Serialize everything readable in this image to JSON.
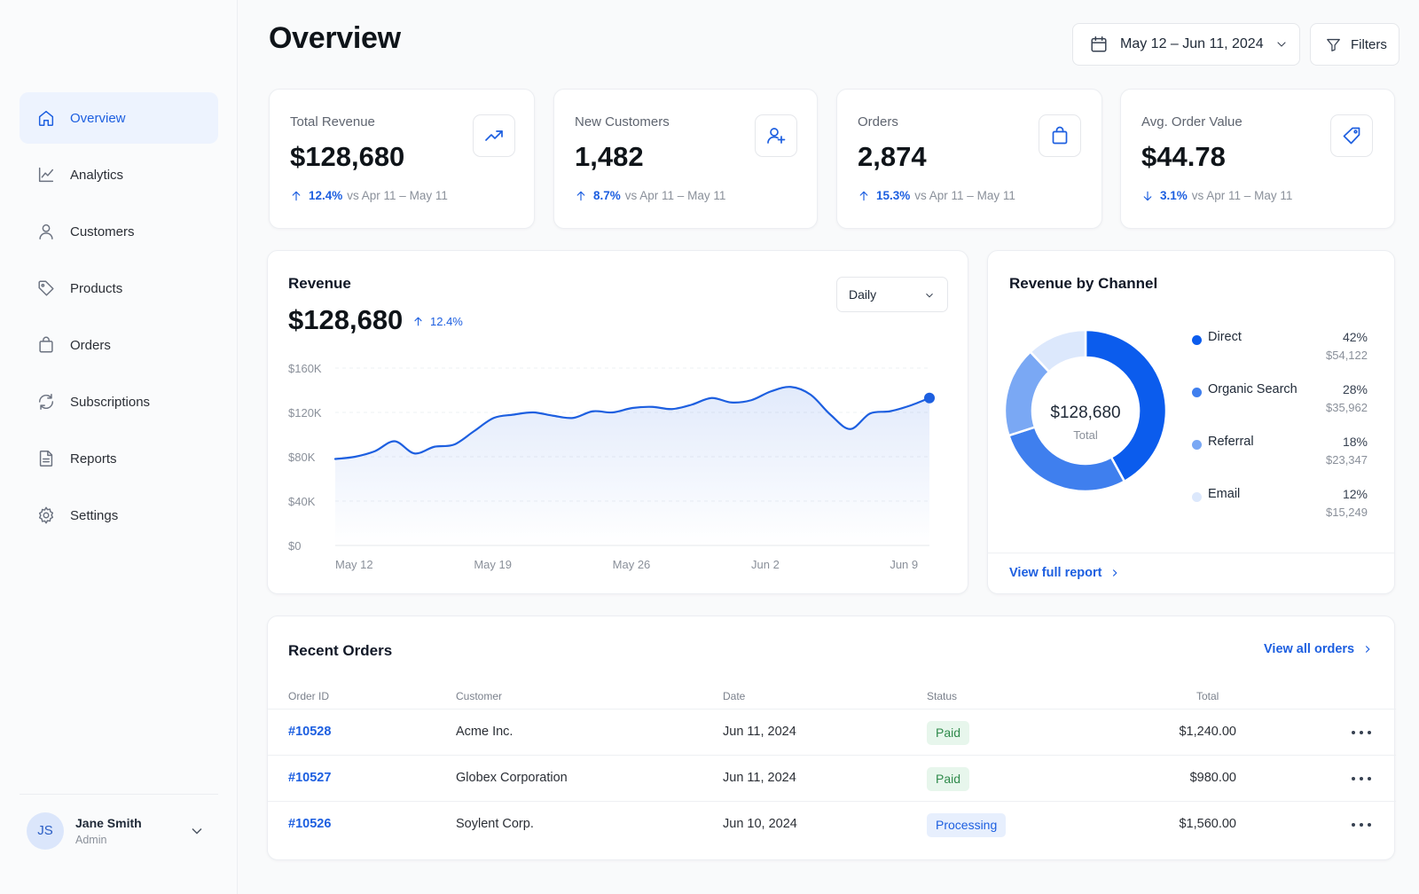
{
  "sidebar": {
    "items": [
      {
        "label": "Overview",
        "icon": "home-icon",
        "active": true
      },
      {
        "label": "Analytics",
        "icon": "line-chart-icon"
      },
      {
        "label": "Customers",
        "icon": "user-icon"
      },
      {
        "label": "Products",
        "icon": "tag-icon"
      },
      {
        "label": "Orders",
        "icon": "shopping-bag-icon"
      },
      {
        "label": "Subscriptions",
        "icon": "refresh-icon"
      },
      {
        "label": "Reports",
        "icon": "document-icon"
      },
      {
        "label": "Settings",
        "icon": "gear-icon"
      }
    ],
    "user": {
      "initials": "JS",
      "name": "Jane Smith",
      "role": "Admin"
    }
  },
  "header": {
    "title": "Overview",
    "date_range": "May 12 – Jun 11, 2024",
    "filters_label": "Filters"
  },
  "kpis": [
    {
      "label": "Total Revenue",
      "value": "$128,680",
      "delta": "12.4%",
      "direction": "up",
      "compare": "vs Apr 11 – May 11",
      "icon": "trending-up-icon"
    },
    {
      "label": "New Customers",
      "value": "1,482",
      "delta": "8.7%",
      "direction": "up",
      "compare": "vs Apr 11 – May 11",
      "icon": "user-plus-icon"
    },
    {
      "label": "Orders",
      "value": "2,874",
      "delta": "15.3%",
      "direction": "up",
      "compare": "vs Apr 11 – May 11",
      "icon": "shopping-bag-icon"
    },
    {
      "label": "Avg. Order Value",
      "value": "$44.78",
      "delta": "3.1%",
      "direction": "down",
      "compare": "vs Apr 11 – May 11",
      "icon": "tag-icon"
    }
  ],
  "revenue": {
    "title": "Revenue",
    "value": "$128,680",
    "delta": "12.4%",
    "period": "Daily"
  },
  "chart_data": {
    "type": "area",
    "y_ticks": [
      "$160K",
      "$120K",
      "$80K",
      "$40K",
      "$0"
    ],
    "x_ticks": [
      "May 12",
      "May 19",
      "May 26",
      "Jun 2",
      "Jun 9"
    ],
    "ylim": [
      0,
      160000
    ],
    "x": [
      "May 12",
      "May 13",
      "May 14",
      "May 15",
      "May 16",
      "May 17",
      "May 18",
      "May 19",
      "May 20",
      "May 21",
      "May 22",
      "May 23",
      "May 24",
      "May 25",
      "May 26",
      "May 27",
      "May 28",
      "May 29",
      "May 30",
      "May 31",
      "Jun 1",
      "Jun 2",
      "Jun 3",
      "Jun 4",
      "Jun 5",
      "Jun 6",
      "Jun 7",
      "Jun 8",
      "Jun 9",
      "Jun 10",
      "Jun 11"
    ],
    "values": [
      78000,
      80000,
      85000,
      94000,
      83000,
      89000,
      91000,
      103000,
      115000,
      118000,
      120000,
      117000,
      115000,
      121000,
      120000,
      124000,
      125000,
      123000,
      127000,
      133000,
      129000,
      131000,
      139000,
      143000,
      136000,
      118000,
      105000,
      119000,
      121000,
      126000,
      133000
    ],
    "color": "#1d5fe0",
    "grid": true
  },
  "channels": {
    "title": "Revenue by Channel",
    "total_value": "$128,680",
    "total_label": "Total",
    "link": "View full report",
    "chart_data": {
      "type": "pie",
      "labels": [
        "Direct",
        "Organic Search",
        "Referral",
        "Email"
      ],
      "values": [
        42,
        28,
        18,
        12
      ],
      "amounts": [
        "$54,122",
        "$35,962",
        "$23,347",
        "$15,249"
      ],
      "pcts": [
        "42%",
        "28%",
        "18%",
        "12%"
      ],
      "colors": [
        "#0b5ced",
        "#3f7fee",
        "#7aa8f4",
        "#dce8fc"
      ]
    }
  },
  "orders": {
    "title": "Recent Orders",
    "link": "View all orders",
    "columns": [
      "Order ID",
      "Customer",
      "Date",
      "Status",
      "Total"
    ],
    "rows": [
      {
        "id": "#10528",
        "customer": "Acme Inc.",
        "date": "Jun 11, 2024",
        "status": "Paid",
        "total": "$1,240.00"
      },
      {
        "id": "#10527",
        "customer": "Globex Corporation",
        "date": "Jun 11, 2024",
        "status": "Paid",
        "total": "$980.00"
      },
      {
        "id": "#10526",
        "customer": "Soylent Corp.",
        "date": "Jun 10, 2024",
        "status": "Processing",
        "total": "$1,560.00"
      }
    ]
  }
}
